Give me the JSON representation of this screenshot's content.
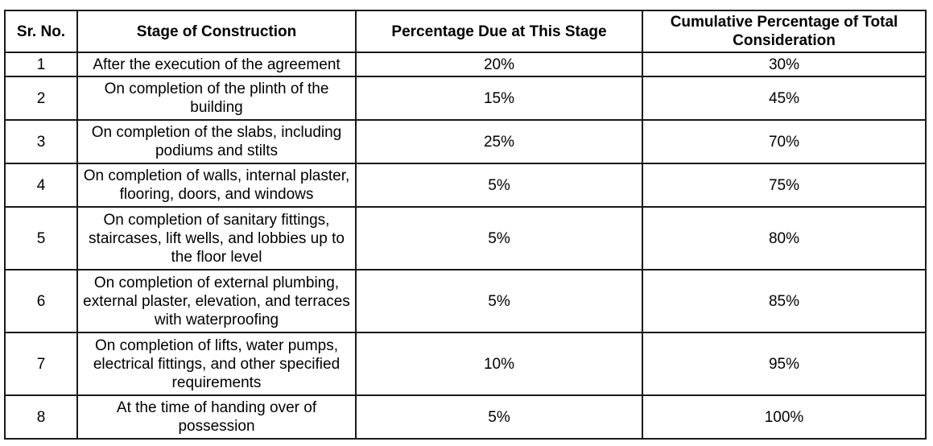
{
  "table": {
    "headers": [
      "Sr. No.",
      "Stage of Construction",
      "Percentage Due at This Stage",
      "Cumulative Percentage of Total Consideration"
    ],
    "rows": [
      {
        "sr": "1",
        "stage": "After the execution of the agreement",
        "due": "20%",
        "cumulative": "30%"
      },
      {
        "sr": "2",
        "stage": "On completion of the plinth of the building",
        "due": "15%",
        "cumulative": "45%"
      },
      {
        "sr": "3",
        "stage": "On completion of the slabs, including podiums and stilts",
        "due": "25%",
        "cumulative": "70%"
      },
      {
        "sr": "4",
        "stage": "On completion of walls, internal plaster, flooring, doors, and windows",
        "due": "5%",
        "cumulative": "75%"
      },
      {
        "sr": "5",
        "stage": "On completion of sanitary fittings, staircases, lift wells, and lobbies up to the floor level",
        "due": "5%",
        "cumulative": "80%"
      },
      {
        "sr": "6",
        "stage": "On completion of external plumbing, external plaster, elevation, and terraces with waterproofing",
        "due": "5%",
        "cumulative": "85%"
      },
      {
        "sr": "7",
        "stage": "On completion of lifts, water pumps, electrical fittings, and other specified requirements",
        "due": "10%",
        "cumulative": "95%"
      },
      {
        "sr": "8",
        "stage": "At the time of handing over of possession",
        "due": "5%",
        "cumulative": "100%"
      }
    ]
  }
}
